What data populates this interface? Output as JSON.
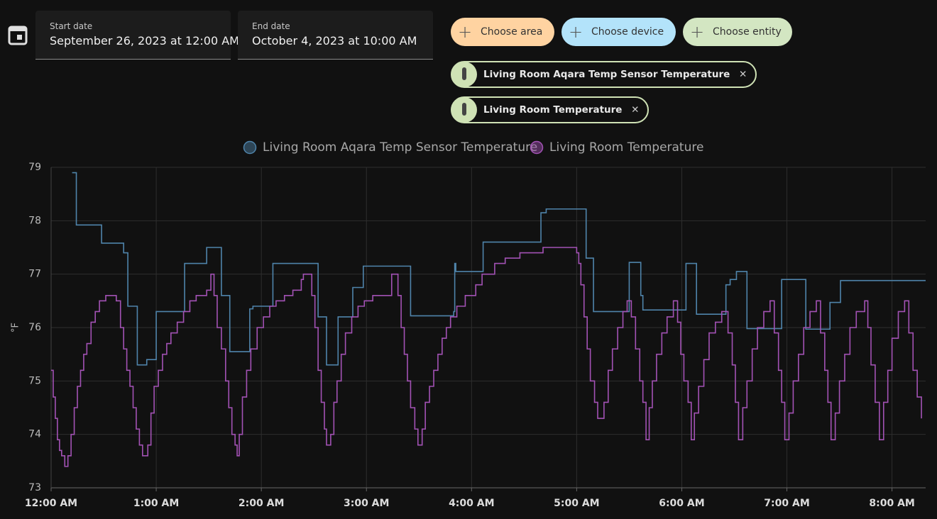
{
  "toolbar": {
    "start_label": "Start date",
    "start_value": "September 26, 2023 at 12:00 AM",
    "end_label": "End date",
    "end_value": "October 4, 2023 at 10:00 AM",
    "buttons": [
      "Choose area",
      "Choose device",
      "Choose entity"
    ],
    "chips": [
      "Living Room Aqara Temp Sensor Temperature",
      "Living Room Temperature"
    ]
  },
  "chart_data": {
    "type": "line",
    "step": true,
    "y_label": "°F",
    "grid": true,
    "xlim": [
      0,
      8.32
    ],
    "ylim": [
      73,
      79
    ],
    "yticks": [
      73,
      74,
      75,
      76,
      77,
      78,
      79
    ],
    "xticks": [
      {
        "value": 0,
        "label": "12:00 AM"
      },
      {
        "value": 1,
        "label": "1:00 AM"
      },
      {
        "value": 2,
        "label": "2:00 AM"
      },
      {
        "value": 3,
        "label": "3:00 AM"
      },
      {
        "value": 4,
        "label": "4:00 AM"
      },
      {
        "value": 5,
        "label": "5:00 AM"
      },
      {
        "value": 6,
        "label": "6:00 AM"
      },
      {
        "value": 7,
        "label": "7:00 AM"
      },
      {
        "value": 8,
        "label": "8:00 AM"
      }
    ],
    "series": [
      {
        "name": "Living Room Aqara Temp Sensor Temperature",
        "color": "#4f84ab",
        "x": [
          0.2,
          0.24,
          0.48,
          0.69,
          0.73,
          0.82,
          0.91,
          1.0,
          1.27,
          1.48,
          1.62,
          1.7,
          1.89,
          1.92,
          2.11,
          2.54,
          2.62,
          2.73,
          2.87,
          2.97,
          3.42,
          3.83,
          3.84,
          3.85,
          4.11,
          4.66,
          4.71,
          5.09,
          5.16,
          5.5,
          5.61,
          5.63,
          6.04,
          6.14,
          6.42,
          6.46,
          6.52,
          6.62,
          6.95,
          7.18,
          7.41,
          7.51,
          8.32
        ],
        "values": [
          78.9,
          77.92,
          77.58,
          77.4,
          76.4,
          75.3,
          75.4,
          76.3,
          77.2,
          77.5,
          76.6,
          75.55,
          76.35,
          76.4,
          77.2,
          76.2,
          75.3,
          76.2,
          76.75,
          77.15,
          76.22,
          76.3,
          77.2,
          77.05,
          77.6,
          78.15,
          78.22,
          77.3,
          76.3,
          77.22,
          76.6,
          76.33,
          77.2,
          76.25,
          76.8,
          76.9,
          77.05,
          75.98,
          76.9,
          75.97,
          76.47,
          76.88,
          76.88
        ]
      },
      {
        "name": "Living Room Temperature",
        "color": "#a352b5",
        "x": [
          0.0,
          0.02,
          0.04,
          0.06,
          0.08,
          0.1,
          0.13,
          0.16,
          0.19,
          0.22,
          0.25,
          0.28,
          0.31,
          0.34,
          0.38,
          0.42,
          0.46,
          0.52,
          0.62,
          0.66,
          0.69,
          0.72,
          0.75,
          0.78,
          0.81,
          0.84,
          0.87,
          0.92,
          0.95,
          0.98,
          1.02,
          1.06,
          1.1,
          1.14,
          1.2,
          1.26,
          1.32,
          1.38,
          1.48,
          1.52,
          1.55,
          1.58,
          1.62,
          1.66,
          1.69,
          1.72,
          1.75,
          1.77,
          1.79,
          1.82,
          1.86,
          1.9,
          1.96,
          2.02,
          2.08,
          2.14,
          2.22,
          2.3,
          2.38,
          2.4,
          2.48,
          2.51,
          2.54,
          2.57,
          2.6,
          2.62,
          2.66,
          2.69,
          2.72,
          2.76,
          2.8,
          2.86,
          2.92,
          2.98,
          3.06,
          3.14,
          3.24,
          3.3,
          3.33,
          3.36,
          3.39,
          3.42,
          3.46,
          3.49,
          3.53,
          3.56,
          3.6,
          3.64,
          3.68,
          3.72,
          3.76,
          3.8,
          3.86,
          3.94,
          4.04,
          4.1,
          4.22,
          4.32,
          4.46,
          4.68,
          5.0,
          5.02,
          5.04,
          5.07,
          5.1,
          5.13,
          5.17,
          5.2,
          5.26,
          5.3,
          5.34,
          5.39,
          5.44,
          5.48,
          5.52,
          5.56,
          5.6,
          5.63,
          5.66,
          5.69,
          5.72,
          5.76,
          5.81,
          5.86,
          5.92,
          5.96,
          5.99,
          6.02,
          6.06,
          6.09,
          6.12,
          6.16,
          6.21,
          6.26,
          6.32,
          6.38,
          6.44,
          6.48,
          6.51,
          6.54,
          6.58,
          6.62,
          6.67,
          6.72,
          6.78,
          6.84,
          6.88,
          6.92,
          6.95,
          6.98,
          7.02,
          7.06,
          7.11,
          7.16,
          7.22,
          7.28,
          7.32,
          7.36,
          7.39,
          7.42,
          7.46,
          7.5,
          7.55,
          7.6,
          7.66,
          7.74,
          7.77,
          7.8,
          7.84,
          7.88,
          7.92,
          7.96,
          8.0,
          8.06,
          8.12,
          8.16,
          8.2,
          8.24,
          8.28
        ],
        "values": [
          75.2,
          74.7,
          74.3,
          73.9,
          73.7,
          73.6,
          73.4,
          73.6,
          74.0,
          74.5,
          74.9,
          75.2,
          75.5,
          75.7,
          76.1,
          76.3,
          76.5,
          76.6,
          76.5,
          76.0,
          75.6,
          75.2,
          74.9,
          74.5,
          74.1,
          73.8,
          73.6,
          73.8,
          74.4,
          74.9,
          75.2,
          75.5,
          75.7,
          75.9,
          76.1,
          76.3,
          76.5,
          76.6,
          76.7,
          77.0,
          76.6,
          76.0,
          75.6,
          75.0,
          74.5,
          74.0,
          73.8,
          73.6,
          74.0,
          74.7,
          75.2,
          75.6,
          76.0,
          76.2,
          76.4,
          76.5,
          76.6,
          76.7,
          76.9,
          77.0,
          76.6,
          76.0,
          75.2,
          74.6,
          74.1,
          73.8,
          74.0,
          74.6,
          75.0,
          75.5,
          75.9,
          76.2,
          76.4,
          76.5,
          76.6,
          76.6,
          77.0,
          76.6,
          76.0,
          75.5,
          75.0,
          74.5,
          74.1,
          73.8,
          74.1,
          74.6,
          74.9,
          75.2,
          75.5,
          75.8,
          76.0,
          76.2,
          76.4,
          76.6,
          76.8,
          77.0,
          77.2,
          77.3,
          77.4,
          77.5,
          77.4,
          77.2,
          76.8,
          76.2,
          75.6,
          75.0,
          74.6,
          74.3,
          74.6,
          75.2,
          75.6,
          76.0,
          76.3,
          76.5,
          76.2,
          75.6,
          75.0,
          74.6,
          73.9,
          74.5,
          75.0,
          75.5,
          75.9,
          76.2,
          76.5,
          76.1,
          75.5,
          75.0,
          74.6,
          73.9,
          74.4,
          74.9,
          75.4,
          75.9,
          76.1,
          76.3,
          75.9,
          75.3,
          74.6,
          73.9,
          74.5,
          75.0,
          75.6,
          76.0,
          76.3,
          76.5,
          75.9,
          75.2,
          74.6,
          73.9,
          74.4,
          75.0,
          75.5,
          76.0,
          76.3,
          76.5,
          75.9,
          75.2,
          74.6,
          73.9,
          74.4,
          75.0,
          75.5,
          76.0,
          76.3,
          76.5,
          76.0,
          75.3,
          74.6,
          73.9,
          74.6,
          75.2,
          75.8,
          76.3,
          76.5,
          75.9,
          75.2,
          74.7,
          74.3
        ]
      }
    ]
  }
}
